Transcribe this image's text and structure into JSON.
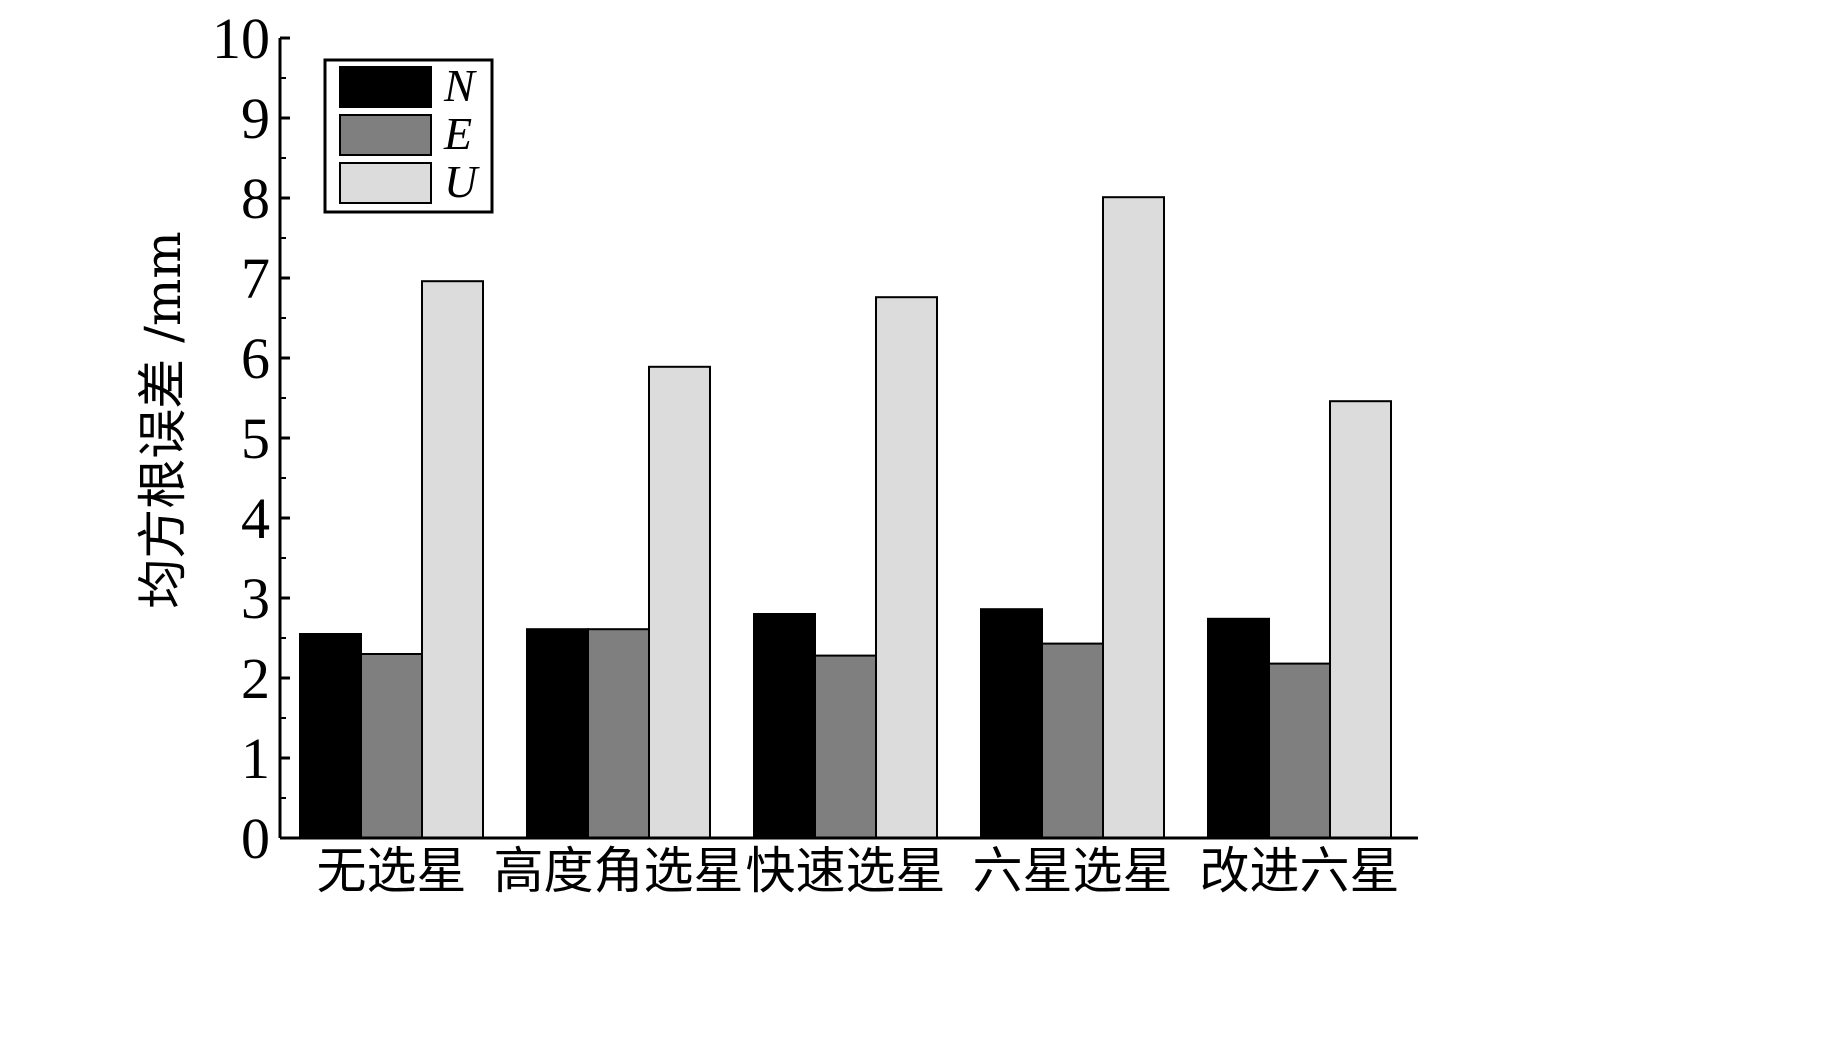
{
  "chart_data": {
    "type": "bar",
    "title": "",
    "xlabel": "",
    "ylabel": "均方根误差 /mm",
    "ylim": [
      0,
      10
    ],
    "yticks": [
      0,
      1,
      2,
      3,
      4,
      5,
      6,
      7,
      8,
      9,
      10
    ],
    "categories": [
      "无选星",
      "高度角选星",
      "快速选星",
      "六星选星",
      "改进六星"
    ],
    "series": [
      {
        "name": "N",
        "color": "#000000",
        "values": [
          2.55,
          2.61,
          2.8,
          2.86,
          2.74
        ]
      },
      {
        "name": "E",
        "color": "#7f7f7f",
        "values": [
          2.3,
          2.61,
          2.28,
          2.43,
          2.18
        ]
      },
      {
        "name": "U",
        "color": "#dcdcdc",
        "values": [
          6.96,
          5.89,
          6.76,
          8.01,
          5.46
        ]
      }
    ],
    "legend_position": "top-left",
    "grid": false
  }
}
